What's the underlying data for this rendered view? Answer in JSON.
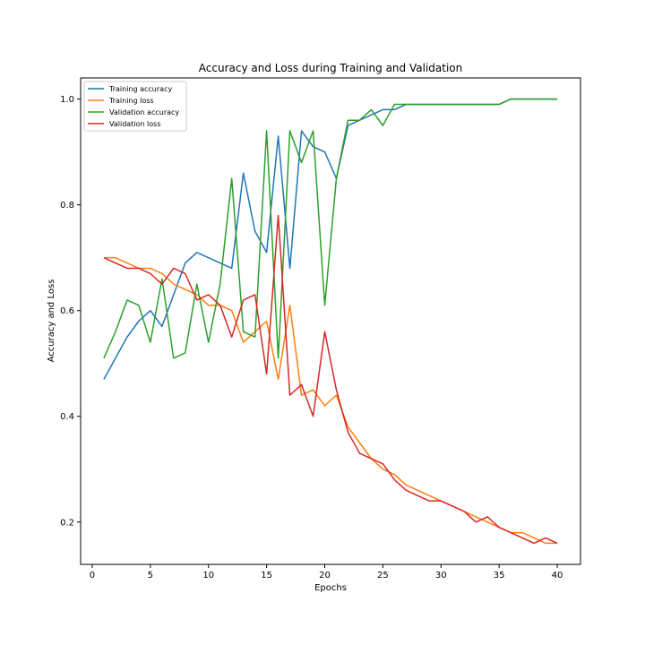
{
  "chart_data": {
    "type": "line",
    "title": "Accuracy and Loss during Training and Validation",
    "xlabel": "Epochs",
    "ylabel": "Accuracy and Loss",
    "xlim": [
      -1,
      42
    ],
    "ylim": [
      0.12,
      1.04
    ],
    "xticks": [
      0,
      5,
      10,
      15,
      20,
      25,
      30,
      35,
      40
    ],
    "yticks": [
      0.2,
      0.4,
      0.6,
      0.8,
      1.0
    ],
    "ytick_labels": [
      "0.2",
      "0.4",
      "0.6",
      "0.8",
      "1.0"
    ],
    "grid": false,
    "legend_position": "top-left",
    "x": [
      1,
      2,
      3,
      4,
      5,
      6,
      7,
      8,
      9,
      10,
      11,
      12,
      13,
      14,
      15,
      16,
      17,
      18,
      19,
      20,
      21,
      22,
      23,
      24,
      25,
      26,
      27,
      28,
      29,
      30,
      31,
      32,
      33,
      34,
      35,
      36,
      37,
      38,
      39,
      40
    ],
    "series": [
      {
        "name": "Training accuracy",
        "color": "#1f77b4",
        "values": [
          0.47,
          0.51,
          0.55,
          0.58,
          0.6,
          0.57,
          0.63,
          0.69,
          0.71,
          0.7,
          0.69,
          0.68,
          0.86,
          0.75,
          0.71,
          0.93,
          0.68,
          0.94,
          0.91,
          0.9,
          0.85,
          0.95,
          0.96,
          0.97,
          0.98,
          0.98,
          0.99,
          0.99,
          0.99,
          0.99,
          0.99,
          0.99,
          0.99,
          0.99,
          0.99,
          1.0,
          1.0,
          1.0,
          1.0,
          1.0
        ]
      },
      {
        "name": "Training loss",
        "color": "#ff7f0e",
        "values": [
          0.7,
          0.7,
          0.69,
          0.68,
          0.68,
          0.67,
          0.65,
          0.64,
          0.63,
          0.61,
          0.61,
          0.6,
          0.54,
          0.56,
          0.58,
          0.47,
          0.61,
          0.44,
          0.45,
          0.42,
          0.44,
          0.38,
          0.35,
          0.32,
          0.3,
          0.29,
          0.27,
          0.26,
          0.25,
          0.24,
          0.23,
          0.22,
          0.21,
          0.2,
          0.19,
          0.18,
          0.18,
          0.17,
          0.16,
          0.16
        ]
      },
      {
        "name": "Validation accuracy",
        "color": "#2ca02c",
        "values": [
          0.51,
          0.56,
          0.62,
          0.61,
          0.54,
          0.66,
          0.51,
          0.52,
          0.65,
          0.54,
          0.65,
          0.85,
          0.56,
          0.55,
          0.94,
          0.51,
          0.94,
          0.88,
          0.94,
          0.61,
          0.85,
          0.96,
          0.96,
          0.98,
          0.95,
          0.99,
          0.99,
          0.99,
          0.99,
          0.99,
          0.99,
          0.99,
          0.99,
          0.99,
          0.99,
          1.0,
          1.0,
          1.0,
          1.0,
          1.0
        ]
      },
      {
        "name": "Validation loss",
        "color": "#d62728",
        "values": [
          0.7,
          0.69,
          0.68,
          0.68,
          0.67,
          0.65,
          0.68,
          0.67,
          0.62,
          0.63,
          0.61,
          0.55,
          0.62,
          0.63,
          0.48,
          0.78,
          0.44,
          0.46,
          0.4,
          0.56,
          0.45,
          0.37,
          0.33,
          0.32,
          0.31,
          0.28,
          0.26,
          0.25,
          0.24,
          0.24,
          0.23,
          0.22,
          0.2,
          0.21,
          0.19,
          0.18,
          0.17,
          0.16,
          0.17,
          0.16
        ]
      }
    ]
  }
}
